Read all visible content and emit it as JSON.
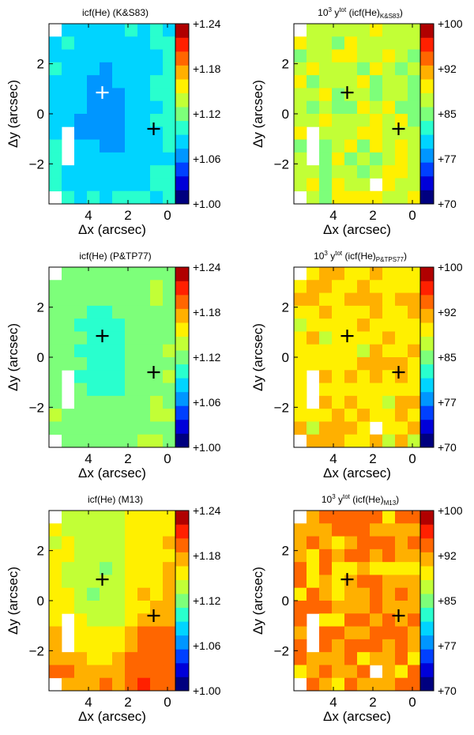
{
  "figure": {
    "xlabel": "Δx (arcsec)",
    "ylabel": "Δy (arcsec)",
    "x_ticks": [
      "4",
      "2",
      "0"
    ],
    "y_ticks": [
      "2",
      "0",
      "−2"
    ]
  },
  "chart_data": [
    {
      "type": "heatmap",
      "title": "icf(He) (K&S83)",
      "title_parts": {
        "pre": "",
        "main": "icf(He) (K&S83)",
        "sub": ""
      },
      "xlabel": "Δx (arcsec)",
      "ylabel": "Δy (arcsec)",
      "xlim": [
        6.0,
        -0.4
      ],
      "ylim": [
        -3.6,
        3.6
      ],
      "x_ticks": [
        4,
        2,
        0
      ],
      "y_ticks": [
        2,
        0,
        -2
      ],
      "colorbar": {
        "min": 1.0,
        "max": 1.24,
        "tick_labels": [
          "+1.24",
          "+1.18",
          "+1.12",
          "+1.06",
          "+1.00"
        ]
      },
      "seed": 11,
      "noise": 0.004,
      "model": {
        "kind": "well",
        "base": 1.095,
        "center": [
          3.3,
          0.2
        ],
        "depth": 0.032,
        "radius": 1.9,
        "grad_y": 0.0
      },
      "markers": [
        {
          "x": 3.3,
          "y": 0.85,
          "color": "white"
        },
        {
          "x": 0.7,
          "y": -0.6,
          "color": "black"
        }
      ]
    },
    {
      "type": "heatmap",
      "title": "10^3 y^tot (icf(He)_K&S83)",
      "title_parts": {
        "pre": "10",
        "sup": "3",
        "mid": " y",
        "sup2": "tot",
        "main": " (icf(He)",
        "sub": "K&S83",
        "end": ")"
      },
      "xlabel": "Δx (arcsec)",
      "ylabel": "Δy (arcsec)",
      "xlim": [
        6.0,
        -0.4
      ],
      "ylim": [
        -3.6,
        3.6
      ],
      "x_ticks": [
        4,
        2,
        0
      ],
      "y_ticks": [
        2,
        0,
        -2
      ],
      "colorbar": {
        "min": 70,
        "max": 100,
        "tick_labels": [
          "+100",
          "+92",
          "+85",
          "+77",
          "+70"
        ]
      },
      "seed": 23,
      "noise": 2.2,
      "model": {
        "kind": "flat",
        "base": 87.5
      },
      "markers": [
        {
          "x": 3.3,
          "y": 0.85,
          "color": "black"
        },
        {
          "x": 0.7,
          "y": -0.6,
          "color": "black"
        }
      ]
    },
    {
      "type": "heatmap",
      "title": "icf(He) (P&TP77)",
      "title_parts": {
        "pre": "",
        "main": "icf(He) (P&TP77)",
        "sub": ""
      },
      "xlabel": "Δx (arcsec)",
      "ylabel": "Δy (arcsec)",
      "xlim": [
        6.0,
        -0.4
      ],
      "ylim": [
        -3.6,
        3.6
      ],
      "x_ticks": [
        4,
        2,
        0
      ],
      "y_ticks": [
        2,
        0,
        -2
      ],
      "colorbar": {
        "min": 1.0,
        "max": 1.24,
        "tick_labels": [
          "+1.24",
          "+1.18",
          "+1.12",
          "+1.06",
          "+1.00"
        ]
      },
      "seed": 37,
      "noise": 0.004,
      "model": {
        "kind": "well",
        "base": 1.128,
        "center": [
          3.3,
          0.3
        ],
        "depth": 0.03,
        "radius": 1.8,
        "grad_y": 0.0
      },
      "markers": [
        {
          "x": 3.3,
          "y": 0.85,
          "color": "black"
        },
        {
          "x": 0.7,
          "y": -0.6,
          "color": "black"
        }
      ]
    },
    {
      "type": "heatmap",
      "title": "10^3 y^tot (icf(He)_P&TPS77)",
      "title_parts": {
        "pre": "10",
        "sup": "3",
        "mid": " y",
        "sup2": "tot",
        "main": " (icf(He)",
        "sub": "P&TPS77",
        "end": ")"
      },
      "xlabel": "Δx (arcsec)",
      "ylabel": "Δy (arcsec)",
      "xlim": [
        6.0,
        -0.4
      ],
      "ylim": [
        -3.6,
        3.6
      ],
      "x_ticks": [
        4,
        2,
        0
      ],
      "y_ticks": [
        2,
        0,
        -2
      ],
      "colorbar": {
        "min": 70,
        "max": 100,
        "tick_labels": [
          "+100",
          "+92",
          "+85",
          "+77",
          "+70"
        ]
      },
      "seed": 51,
      "noise": 2.0,
      "model": {
        "kind": "flat",
        "base": 90.2
      },
      "markers": [
        {
          "x": 3.3,
          "y": 0.85,
          "color": "black"
        },
        {
          "x": 0.7,
          "y": -0.6,
          "color": "black"
        }
      ]
    },
    {
      "type": "heatmap",
      "title": "icf(He) (M13)",
      "title_parts": {
        "pre": "",
        "main": "icf(He) (M13)",
        "sub": ""
      },
      "xlabel": "Δx (arcsec)",
      "ylabel": "Δy (arcsec)",
      "xlim": [
        6.0,
        -0.4
      ],
      "ylim": [
        -3.6,
        3.6
      ],
      "x_ticks": [
        4,
        2,
        0
      ],
      "y_ticks": [
        2,
        0,
        -2
      ],
      "colorbar": {
        "min": 1.0,
        "max": 1.24,
        "tick_labels": [
          "+1.24",
          "+1.18",
          "+1.12",
          "+1.06",
          "+1.00"
        ]
      },
      "seed": 67,
      "noise": 0.005,
      "model": {
        "kind": "well",
        "base": 1.165,
        "center": [
          3.2,
          0.0
        ],
        "depth": 0.035,
        "radius": 2.1,
        "grad_y": -0.004
      },
      "markers": [
        {
          "x": 3.3,
          "y": 0.85,
          "color": "black"
        },
        {
          "x": 0.7,
          "y": -0.6,
          "color": "black"
        }
      ]
    },
    {
      "type": "heatmap",
      "title": "10^3 y^tot (icf(He)_M13)",
      "title_parts": {
        "pre": "10",
        "sup": "3",
        "mid": " y",
        "sup2": "tot",
        "main": " (icf(He)",
        "sub": "M13",
        "end": ")"
      },
      "xlabel": "Δx (arcsec)",
      "ylabel": "Δy (arcsec)",
      "xlim": [
        6.0,
        -0.4
      ],
      "ylim": [
        -3.6,
        3.6
      ],
      "x_ticks": [
        4,
        2,
        0
      ],
      "y_ticks": [
        2,
        0,
        -2
      ],
      "colorbar": {
        "min": 70,
        "max": 100,
        "tick_labels": [
          "+100",
          "+92",
          "+85",
          "+77",
          "+70"
        ]
      },
      "seed": 83,
      "noise": 2.4,
      "model": {
        "kind": "flat",
        "base": 92.5
      },
      "markers": [
        {
          "x": 3.3,
          "y": 0.85,
          "color": "black"
        },
        {
          "x": 0.7,
          "y": -0.6,
          "color": "black"
        }
      ]
    }
  ]
}
